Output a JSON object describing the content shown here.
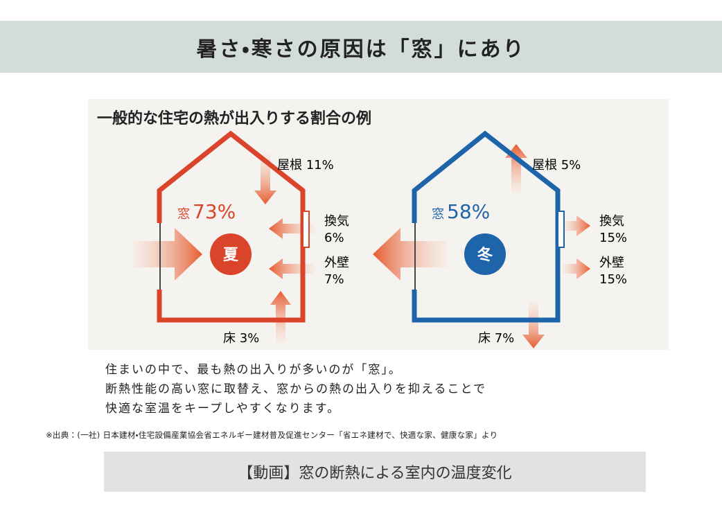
{
  "header": {
    "title": "暑さ・寒さの原因は「窓」にあり"
  },
  "infographic": {
    "title": "一般的な住宅の熱が出入りする割合の例",
    "summer": {
      "season": "夏",
      "window": {
        "label": "窓",
        "value": "73%"
      },
      "roof": "屋根 11%",
      "ventilation": {
        "label": "換気",
        "value": "6%"
      },
      "wall": {
        "label": "外壁",
        "value": "7%"
      },
      "floor": "床 3%"
    },
    "winter": {
      "season": "冬",
      "window": {
        "label": "窓",
        "value": "58%"
      },
      "roof": "屋根 5%",
      "ventilation": {
        "label": "換気",
        "value": "15%"
      },
      "wall": {
        "label": "外壁",
        "value": "15%"
      },
      "floor": "床 7%"
    }
  },
  "description": [
    "住まいの中で、最も熱の出入りが多いのが「窓」。",
    "断熱性能の高い窓に取替え、窓からの熱の出入りを抑えることで",
    "快適な室温をキープしやすくなります。"
  ],
  "source": "※出典：(一社) 日本建材・住宅設備産業協会省エネルギー建材普及促進センター「省エネ建材で、快適な家、健康な家」より",
  "video_button": {
    "label": "【動画】窓の断熱による室内の温度変化"
  }
}
